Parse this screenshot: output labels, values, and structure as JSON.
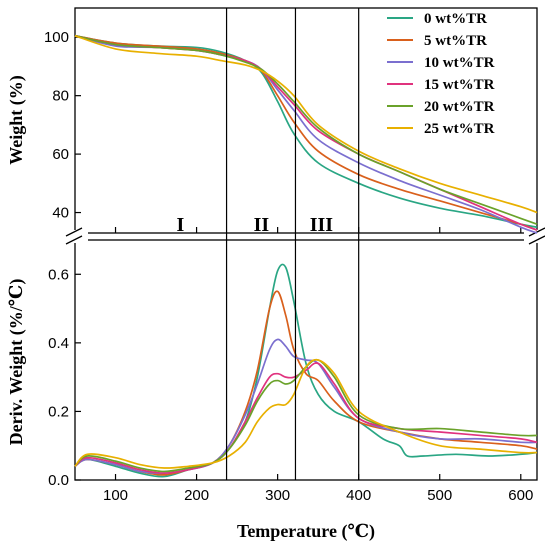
{
  "colors": {
    "0 wt%TR": "#2aa684",
    "5 wt%TR": "#d9601c",
    "10 wt%TR": "#7b6fcf",
    "15 wt%TR": "#e0327e",
    "20 wt%TR": "#6aa22a",
    "25 wt%TR": "#e8b000"
  },
  "chart_data": [
    {
      "type": "line",
      "panel": "top",
      "xlabel": "Temperature (℃)",
      "ylabel": "Weight (%)",
      "xlim": [
        50,
        620
      ],
      "ylim": [
        33,
        110
      ],
      "yticks": [
        40,
        60,
        80,
        100
      ],
      "xticks": [
        100,
        200,
        300,
        400,
        500,
        600
      ],
      "grid": false,
      "legend": "top-right",
      "legend_entries": [
        "0 wt%TR",
        "5 wt%TR",
        "10 wt%TR",
        "15 wt%TR",
        "20 wt%TR",
        "25 wt%TR"
      ],
      "annotations": {
        "vlines": [
          237,
          322,
          400
        ],
        "regions": [
          {
            "label": "I",
            "x": 180
          },
          {
            "label": "II",
            "x": 280
          },
          {
            "label": "III",
            "x": 354
          }
        ]
      },
      "series": [
        {
          "name": "0 wt%TR",
          "x": [
            50,
            100,
            150,
            200,
            230,
            260,
            280,
            300,
            320,
            350,
            400,
            450,
            500,
            550,
            600,
            620
          ],
          "y": [
            100.5,
            98,
            97,
            96.5,
            95,
            92,
            88,
            78,
            67,
            57,
            50,
            45,
            41.5,
            39,
            36,
            35
          ]
        },
        {
          "name": "5 wt%TR",
          "x": [
            50,
            100,
            150,
            200,
            230,
            260,
            280,
            300,
            320,
            350,
            400,
            450,
            500,
            550,
            600,
            620
          ],
          "y": [
            100.5,
            98,
            97,
            96,
            94.5,
            92,
            88.5,
            80,
            71,
            61,
            53,
            48,
            44,
            40,
            36,
            34
          ]
        },
        {
          "name": "10 wt%TR",
          "x": [
            50,
            100,
            150,
            200,
            230,
            260,
            280,
            300,
            320,
            350,
            400,
            450,
            500,
            550,
            600,
            620
          ],
          "y": [
            100.5,
            97,
            96.5,
            95.5,
            94,
            92,
            89,
            82,
            75,
            65,
            57,
            51,
            46,
            41,
            35,
            33
          ]
        },
        {
          "name": "15 wt%TR",
          "x": [
            50,
            100,
            150,
            200,
            230,
            260,
            280,
            300,
            320,
            350,
            400,
            450,
            500,
            550,
            600,
            620
          ],
          "y": [
            100.5,
            97.5,
            96.5,
            95.5,
            94,
            92,
            89,
            83,
            77,
            68,
            60,
            54,
            48,
            42,
            36,
            34
          ]
        },
        {
          "name": "20 wt%TR",
          "x": [
            50,
            100,
            150,
            200,
            230,
            260,
            280,
            300,
            320,
            350,
            400,
            450,
            500,
            550,
            600,
            620
          ],
          "y": [
            100.5,
            97.5,
            96.5,
            95.5,
            94,
            91.5,
            89,
            84,
            78,
            69,
            60,
            54,
            48,
            43,
            38,
            36
          ]
        },
        {
          "name": "25 wt%TR",
          "x": [
            50,
            100,
            150,
            200,
            230,
            260,
            280,
            300,
            320,
            350,
            400,
            450,
            500,
            550,
            600,
            620
          ],
          "y": [
            100.5,
            96,
            94.5,
            93.5,
            92,
            90.5,
            88.5,
            85,
            80,
            70,
            61,
            55,
            50,
            46,
            42,
            40
          ]
        }
      ]
    },
    {
      "type": "line",
      "panel": "bottom",
      "xlabel": "Temperature (℃)",
      "ylabel": "Deriv. Weight (%/℃)",
      "xlim": [
        50,
        620
      ],
      "ylim": [
        0,
        0.7
      ],
      "yticks": [
        0.0,
        0.2,
        0.4,
        0.6
      ],
      "xticks": [
        100,
        200,
        300,
        400,
        500,
        600
      ],
      "grid": false,
      "series": [
        {
          "name": "0 wt%TR",
          "x": [
            50,
            65,
            100,
            130,
            160,
            190,
            220,
            240,
            260,
            275,
            290,
            300,
            310,
            320,
            335,
            350,
            370,
            400,
            430,
            450,
            460,
            480,
            520,
            560,
            600,
            620
          ],
          "y": [
            0.04,
            0.06,
            0.04,
            0.02,
            0.01,
            0.03,
            0.05,
            0.09,
            0.17,
            0.3,
            0.5,
            0.61,
            0.62,
            0.52,
            0.34,
            0.25,
            0.2,
            0.17,
            0.12,
            0.1,
            0.07,
            0.07,
            0.075,
            0.07,
            0.075,
            0.08
          ]
        },
        {
          "name": "5 wt%TR",
          "x": [
            50,
            65,
            100,
            130,
            160,
            190,
            220,
            240,
            260,
            275,
            290,
            300,
            310,
            320,
            335,
            350,
            370,
            400,
            450,
            500,
            550,
            600,
            620
          ],
          "y": [
            0.04,
            0.06,
            0.045,
            0.025,
            0.015,
            0.03,
            0.05,
            0.1,
            0.2,
            0.32,
            0.5,
            0.55,
            0.48,
            0.38,
            0.31,
            0.29,
            0.23,
            0.17,
            0.14,
            0.12,
            0.11,
            0.1,
            0.09
          ]
        },
        {
          "name": "10 wt%TR",
          "x": [
            50,
            65,
            100,
            130,
            160,
            190,
            220,
            240,
            260,
            275,
            290,
            300,
            310,
            320,
            335,
            350,
            370,
            400,
            450,
            500,
            550,
            600,
            620
          ],
          "y": [
            0.04,
            0.06,
            0.045,
            0.025,
            0.02,
            0.03,
            0.05,
            0.1,
            0.19,
            0.28,
            0.38,
            0.41,
            0.39,
            0.36,
            0.35,
            0.34,
            0.27,
            0.18,
            0.14,
            0.12,
            0.12,
            0.11,
            0.11
          ]
        },
        {
          "name": "15 wt%TR",
          "x": [
            50,
            65,
            100,
            130,
            160,
            190,
            220,
            240,
            260,
            275,
            290,
            300,
            310,
            320,
            335,
            350,
            370,
            400,
            450,
            500,
            550,
            600,
            620
          ],
          "y": [
            0.04,
            0.065,
            0.05,
            0.03,
            0.02,
            0.03,
            0.05,
            0.09,
            0.17,
            0.24,
            0.3,
            0.31,
            0.3,
            0.3,
            0.32,
            0.34,
            0.28,
            0.18,
            0.15,
            0.14,
            0.13,
            0.12,
            0.11
          ]
        },
        {
          "name": "20 wt%TR",
          "x": [
            50,
            65,
            100,
            130,
            160,
            190,
            220,
            240,
            260,
            275,
            290,
            300,
            310,
            320,
            335,
            350,
            370,
            400,
            450,
            500,
            550,
            600,
            620
          ],
          "y": [
            0.04,
            0.07,
            0.055,
            0.035,
            0.025,
            0.035,
            0.05,
            0.09,
            0.16,
            0.23,
            0.28,
            0.29,
            0.28,
            0.29,
            0.33,
            0.35,
            0.3,
            0.19,
            0.15,
            0.15,
            0.14,
            0.13,
            0.13
          ]
        },
        {
          "name": "25 wt%TR",
          "x": [
            50,
            65,
            100,
            130,
            160,
            190,
            220,
            240,
            260,
            275,
            290,
            300,
            310,
            320,
            335,
            350,
            370,
            400,
            450,
            500,
            550,
            600,
            620
          ],
          "y": [
            0.04,
            0.075,
            0.065,
            0.045,
            0.035,
            0.04,
            0.05,
            0.07,
            0.11,
            0.17,
            0.21,
            0.22,
            0.22,
            0.25,
            0.33,
            0.35,
            0.31,
            0.2,
            0.14,
            0.1,
            0.09,
            0.08,
            0.08
          ]
        }
      ]
    }
  ]
}
